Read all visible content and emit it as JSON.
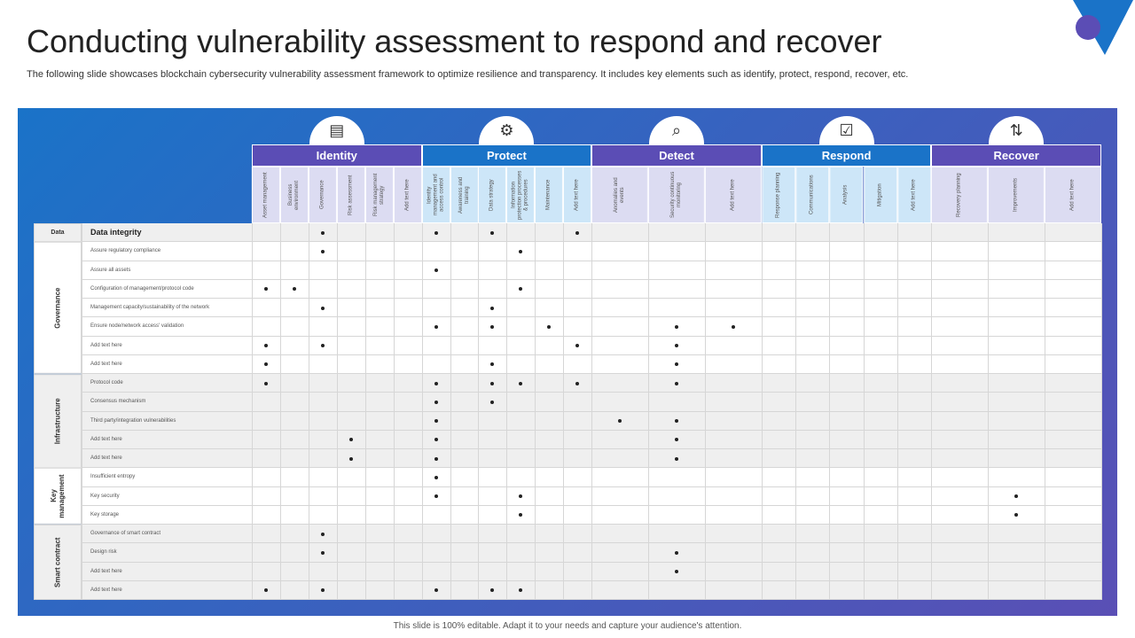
{
  "header": {
    "title": "Conducting vulnerability assessment to respond and recover",
    "subtitle": "The following slide showcases blockchain cybersecurity vulnerability assessment framework to optimize resilience and transparency. It includes key elements such as identify, protect, respond, recover, etc."
  },
  "table": {
    "groups": [
      {
        "name": "Identity",
        "columns": [
          "Asset management",
          "Business environment",
          "Governance",
          "Risk assessment",
          "Risk management strategy",
          "Add text here"
        ]
      },
      {
        "name": "Protect",
        "columns": [
          "Identity management and access control",
          "Awareness and training",
          "Data strategy",
          "Information protection processes & procedures",
          "Maintenance",
          "Add text here"
        ]
      },
      {
        "name": "Detect",
        "columns": [
          "Anomalies and events",
          "Security continuous monitoring",
          "Add text here"
        ]
      },
      {
        "name": "Respond",
        "columns": [
          "Response planning",
          "Communications",
          "Analysis",
          "Mitigation",
          "Add text here"
        ]
      },
      {
        "name": "Recover",
        "columns": [
          "Recovery planning",
          "Improvements",
          "Add text here"
        ]
      }
    ],
    "sections": [
      {
        "label": "Data",
        "rows": [
          {
            "label": "Data integrity",
            "dots": [
              2,
              6,
              8,
              11
            ]
          }
        ]
      },
      {
        "label": "Governance",
        "rows": [
          {
            "label": "Assure regulatory compliance",
            "dots": [
              2,
              9
            ]
          },
          {
            "label": "Assure all assets",
            "dots": [
              6
            ]
          },
          {
            "label": "Configuration of management/protocol code",
            "dots": [
              0,
              1,
              9
            ]
          },
          {
            "label": "Management capacity/sustainability of the network",
            "dots": [
              2,
              8
            ]
          },
          {
            "label": "Ensure node/network access' validation",
            "dots": [
              6,
              8,
              10,
              13,
              14
            ]
          },
          {
            "label": "Add text here",
            "dots": [
              0,
              2,
              11,
              13
            ]
          },
          {
            "label": "Add text here",
            "dots": [
              0,
              8,
              13
            ]
          }
        ]
      },
      {
        "label": "Infrastructure",
        "rows": [
          {
            "label": "Protocol code",
            "dots": [
              0,
              6,
              8,
              9,
              11,
              13
            ]
          },
          {
            "label": "Consensus mechanism",
            "dots": [
              6,
              8
            ]
          },
          {
            "label": "Third party/integration vulnerabilities",
            "dots": [
              6,
              12,
              13
            ]
          },
          {
            "label": "Add text here",
            "dots": [
              3,
              6,
              13
            ]
          },
          {
            "label": "Add text here",
            "dots": [
              3,
              6,
              13
            ]
          }
        ]
      },
      {
        "label": "Key management",
        "rows": [
          {
            "label": "Insufficient entropy",
            "dots": [
              6
            ]
          },
          {
            "label": "Key security",
            "dots": [
              6,
              9,
              21
            ]
          },
          {
            "label": "Key storage",
            "dots": [
              9,
              21
            ]
          }
        ]
      },
      {
        "label": "Smart contract",
        "rows": [
          {
            "label": "Governance of smart contract",
            "dots": [
              2
            ]
          },
          {
            "label": "Design risk",
            "dots": [
              2,
              13
            ]
          },
          {
            "label": "Add text here",
            "dots": [
              13
            ]
          },
          {
            "label": "Add text here",
            "dots": [
              0,
              2,
              6,
              8,
              9
            ]
          }
        ]
      }
    ]
  },
  "footer": "This slide is 100% editable. Adapt it to your needs and capture your audience's attention."
}
